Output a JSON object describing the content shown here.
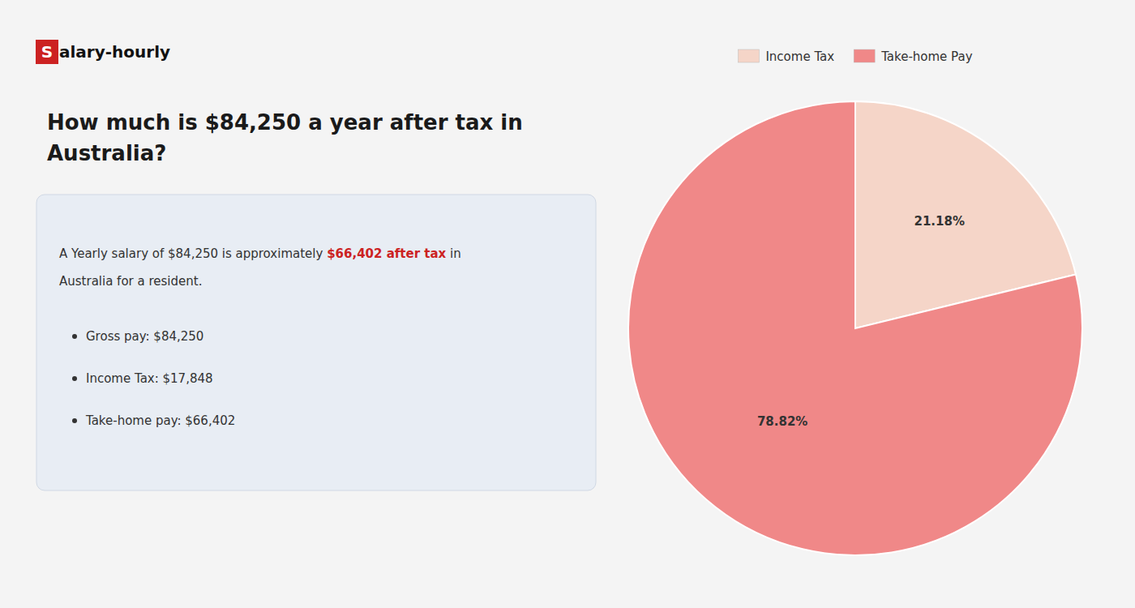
{
  "chart_data": {
    "type": "pie",
    "title": "How much is $84,250 a year after tax in\nAustralia?",
    "annotations": [
      {
        "text": "S",
        "color": "#cc2222"
      },
      {
        "text": "alary-hourly"
      },
      {
        "text": "A Yearly salary of $84,250 is approximately "
      },
      {
        "text": "$66,402 after tax",
        "color": "#cc2222"
      },
      {
        "text": " in"
      },
      {
        "text": "Australia for a resident."
      },
      {
        "text": "Gross pay: $84,250"
      },
      {
        "text": "Income Tax: $17,848"
      },
      {
        "text": "Take-home pay: $66,402"
      }
    ],
    "categories": [
      "Income Tax",
      "Take-home Pay"
    ],
    "values": [
      21.18,
      78.82
    ],
    "value_labels": [
      "21.18%",
      "78.82%"
    ],
    "data_labels": true,
    "colors": [
      "#f5d5c8",
      "#f08888"
    ],
    "legend": "top"
  }
}
